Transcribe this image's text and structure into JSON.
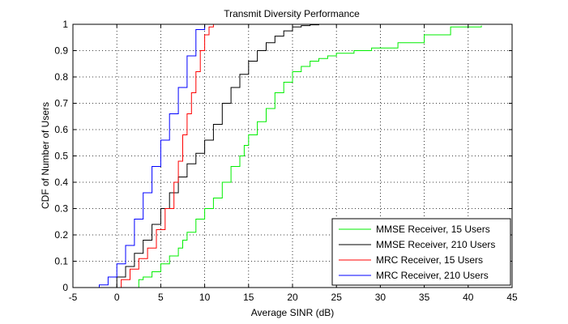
{
  "chart_data": {
    "type": "line",
    "title": "Transmit Diversity Performance",
    "xlabel": "Average SINR (dB)",
    "ylabel": "CDF of Number of Users",
    "xlim": [
      -5,
      45
    ],
    "ylim": [
      0,
      1
    ],
    "xticks": [
      "-5",
      "0",
      "5",
      "10",
      "15",
      "20",
      "25",
      "30",
      "35",
      "40",
      "45"
    ],
    "yticks": [
      "0",
      "0.1",
      "0.2",
      "0.3",
      "0.4",
      "0.5",
      "0.6",
      "0.7",
      "0.8",
      "0.9",
      "1"
    ],
    "grid": true,
    "legend_position": "bottom-right",
    "series": [
      {
        "name": "MMSE Receiver, 15 Users",
        "color": "#00ee00",
        "x": [
          1.5,
          2.5,
          3,
          4,
          5,
          6,
          7,
          7.5,
          8,
          9,
          10,
          11,
          12,
          13,
          14,
          14.5,
          15,
          16,
          17,
          18,
          19,
          20,
          21,
          22,
          23,
          24,
          25,
          27,
          29,
          32,
          35,
          38,
          41.5
        ],
        "y": [
          0,
          0.03,
          0.04,
          0.06,
          0.09,
          0.12,
          0.15,
          0.18,
          0.21,
          0.26,
          0.3,
          0.34,
          0.4,
          0.46,
          0.5,
          0.54,
          0.58,
          0.63,
          0.68,
          0.74,
          0.78,
          0.82,
          0.84,
          0.86,
          0.87,
          0.88,
          0.89,
          0.9,
          0.91,
          0.93,
          0.96,
          0.99,
          0.995
        ]
      },
      {
        "name": "MMSE Receiver, 210 Users",
        "color": "#000000",
        "x": [
          -1,
          0,
          1,
          2,
          3,
          4,
          5,
          6,
          7,
          8,
          9,
          10,
          11,
          12,
          13,
          14,
          15,
          16,
          17,
          18,
          19,
          20,
          21,
          22,
          23,
          24
        ],
        "y": [
          0,
          0.04,
          0.08,
          0.13,
          0.18,
          0.24,
          0.3,
          0.36,
          0.42,
          0.47,
          0.51,
          0.56,
          0.62,
          0.7,
          0.76,
          0.81,
          0.86,
          0.9,
          0.93,
          0.955,
          0.975,
          0.99,
          0.995,
          0.998,
          1.0,
          1.0
        ]
      },
      {
        "name": "MRC Receiver, 15 Users",
        "color": "#ff0000",
        "x": [
          -0.5,
          0.5,
          1.5,
          2.5,
          3.5,
          4.5,
          5.5,
          6.5,
          7,
          7.5,
          8,
          8.5,
          9,
          9.5,
          10,
          10.5,
          11
        ],
        "y": [
          0,
          0.03,
          0.07,
          0.11,
          0.15,
          0.22,
          0.3,
          0.4,
          0.48,
          0.58,
          0.66,
          0.74,
          0.82,
          0.9,
          0.96,
          0.99,
          1.0
        ]
      },
      {
        "name": "MRC Receiver, 210 Users",
        "color": "#0000ff",
        "x": [
          -3.5,
          -2,
          -1,
          0,
          1,
          2,
          3,
          4,
          5,
          6,
          7,
          8,
          9,
          10
        ],
        "y": [
          0,
          0.01,
          0.04,
          0.09,
          0.16,
          0.26,
          0.36,
          0.46,
          0.56,
          0.66,
          0.76,
          0.88,
          0.98,
          1.0
        ]
      }
    ]
  }
}
